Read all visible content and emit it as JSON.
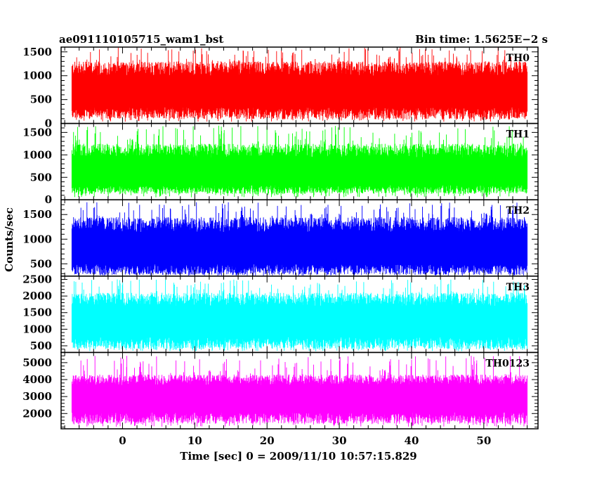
{
  "header": {
    "left_title": "ae091110105715_wam1_bst",
    "right_title": "Bin time: 1.5625E−2 s"
  },
  "ylabel": "Counts/sec",
  "xlabel": "Time [sec] 0 = 2009/11/10 10:57:15.829",
  "chart_data": [
    {
      "type": "line",
      "name": "TH0",
      "color": "#ff0000",
      "xlim": [
        -8.5,
        57.5
      ],
      "ylim": [
        0,
        1600
      ],
      "yticks": [
        0,
        500,
        1000,
        1500
      ],
      "xticks": [
        0,
        10,
        20,
        30,
        40,
        50
      ],
      "x_range": [
        -7.0,
        56.0
      ],
      "values": {
        "low": 90,
        "high": 1300,
        "center": 640,
        "spikes": 1600
      }
    },
    {
      "type": "line",
      "name": "TH1",
      "color": "#00ff00",
      "xlim": [
        -8.5,
        57.5
      ],
      "ylim": [
        0,
        1700
      ],
      "yticks": [
        0,
        500,
        1000,
        1500
      ],
      "xticks": [
        0,
        10,
        20,
        30,
        40,
        50
      ],
      "x_range": [
        -7.0,
        56.0
      ],
      "values": {
        "low": 130,
        "high": 1250,
        "center": 560,
        "spikes": 1650
      }
    },
    {
      "type": "line",
      "name": "TH2",
      "color": "#0000ff",
      "xlim": [
        -8.5,
        57.5
      ],
      "ylim": [
        250,
        1800
      ],
      "yticks": [
        500,
        1000,
        1500
      ],
      "xticks": [
        0,
        10,
        20,
        30,
        40,
        50
      ],
      "x_range": [
        -7.0,
        56.0
      ],
      "values": {
        "low": 280,
        "high": 1450,
        "center": 760,
        "spikes": 1750
      }
    },
    {
      "type": "line",
      "name": "TH3",
      "color": "#00ffff",
      "xlim": [
        -8.5,
        57.5
      ],
      "ylim": [
        300,
        2600
      ],
      "yticks": [
        500,
        1000,
        1500,
        2000,
        2500
      ],
      "xticks": [
        0,
        10,
        20,
        30,
        40,
        50
      ],
      "x_range": [
        -7.0,
        56.0
      ],
      "values": {
        "low": 400,
        "high": 2100,
        "center": 1200,
        "spikes": 2500
      }
    },
    {
      "type": "line",
      "name": "TH0123",
      "color": "#ff00ff",
      "xlim": [
        -8.5,
        57.5
      ],
      "ylim": [
        1100,
        5600
      ],
      "yticks": [
        2000,
        3000,
        4000,
        5000
      ],
      "xticks": [
        0,
        10,
        20,
        30,
        40,
        50
      ],
      "x_range": [
        -7.0,
        56.0
      ],
      "values": {
        "low": 1400,
        "high": 4300,
        "center": 2900,
        "spikes": 5400
      }
    }
  ]
}
